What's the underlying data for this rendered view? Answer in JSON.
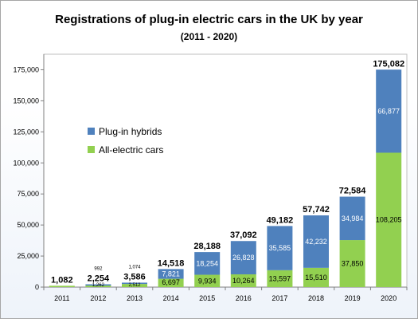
{
  "chart_data": {
    "type": "bar",
    "stacked": true,
    "title": "Registrations of plug-in electric cars in the UK by year",
    "subtitle": "(2011 - 2020)",
    "categories": [
      "2011",
      "2012",
      "2013",
      "2014",
      "2015",
      "2016",
      "2017",
      "2018",
      "2019",
      "2020"
    ],
    "series": [
      {
        "name": "All-electric cars",
        "color": "#92d050",
        "values": [
          1082,
          1262,
          2512,
          6697,
          9934,
          10264,
          13597,
          15510,
          37850,
          108205
        ],
        "labels": [
          "",
          "1,262",
          "2,512",
          "6,697",
          "9,934",
          "10,264",
          "13,597",
          "15,510",
          "37,850",
          "108,205"
        ]
      },
      {
        "name": "Plug-in hybrids",
        "color": "#4f81bd",
        "values": [
          0,
          992,
          1074,
          7821,
          18254,
          26828,
          35585,
          42232,
          34984,
          66877
        ],
        "labels": [
          "",
          "992",
          "1,074",
          "7,821",
          "18,254",
          "26,828",
          "35,585",
          "42,232",
          "34,984",
          "66,877"
        ]
      }
    ],
    "totals": [
      "1,082",
      "2,254",
      "3,586",
      "14,518",
      "28,188",
      "37,092",
      "49,182",
      "57,742",
      "72,584",
      "175,082"
    ],
    "yticks": [
      0,
      25000,
      50000,
      75000,
      100000,
      125000,
      150000,
      175000
    ],
    "ytick_labels": [
      "0",
      "25,000",
      "50,000",
      "75,000",
      "100,000",
      "125,000",
      "150,000",
      "175,000"
    ],
    "ylim": [
      0,
      187500
    ],
    "grid": false,
    "legend": {
      "position": "middle-left",
      "order": [
        "Plug-in hybrids",
        "All-electric cars"
      ]
    }
  }
}
